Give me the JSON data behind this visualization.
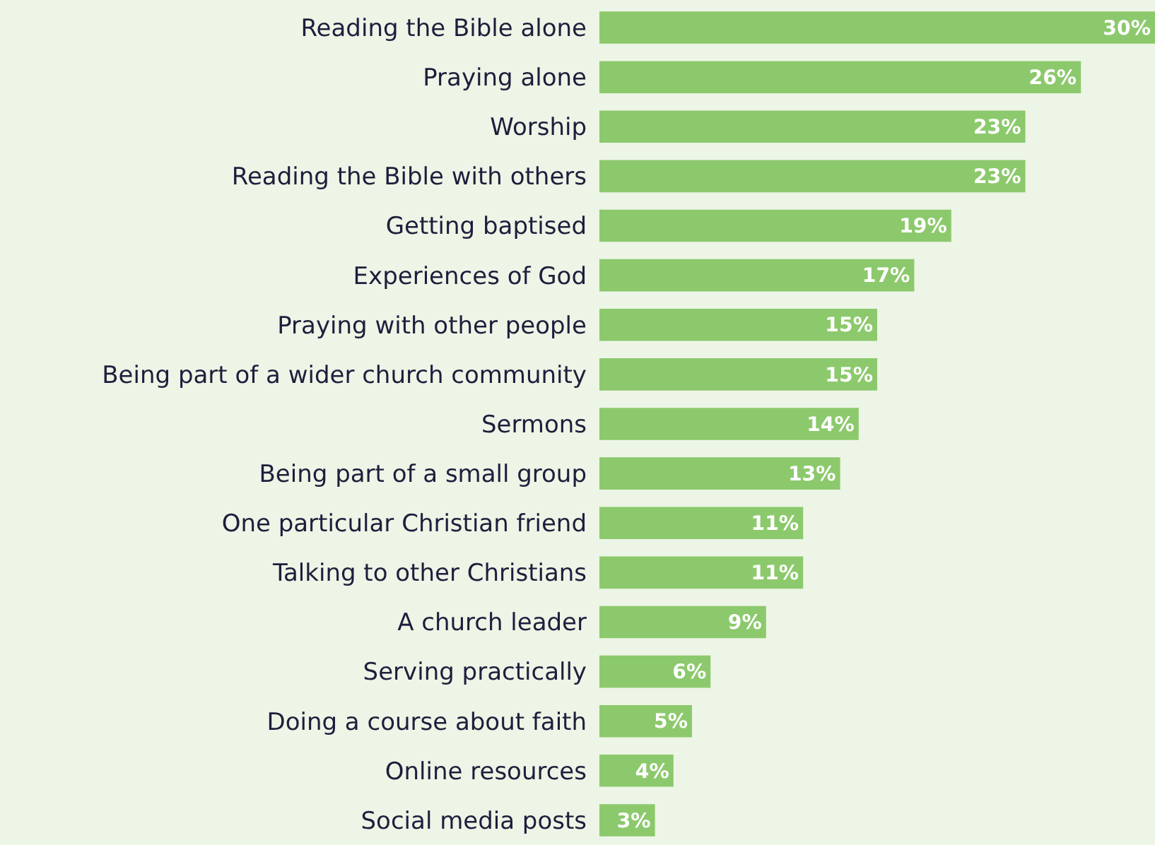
{
  "chart_data": {
    "type": "bar",
    "orientation": "horizontal",
    "categories": [
      "Reading the Bible alone",
      "Praying alone",
      "Worship",
      "Reading the Bible with others",
      "Getting baptised",
      "Experiences of God",
      "Praying with other people",
      "Being part of a wider church community",
      "Sermons",
      "Being part of a small group",
      "One particular Christian friend",
      "Talking to other Christians",
      "A church leader",
      "Serving practically",
      "Doing a course about faith",
      "Online resources",
      "Social media posts"
    ],
    "values": [
      30,
      26,
      23,
      23,
      19,
      17,
      15,
      15,
      14,
      13,
      11,
      11,
      9,
      6,
      5,
      4,
      3
    ],
    "value_labels": [
      "30%",
      "26%",
      "23%",
      "23%",
      "19%",
      "17%",
      "15%",
      "15%",
      "14%",
      "13%",
      "11%",
      "11%",
      "9%",
      "6%",
      "5%",
      "4%",
      "3%"
    ],
    "color": "#8cc96c",
    "grid": false,
    "legend": false
  }
}
